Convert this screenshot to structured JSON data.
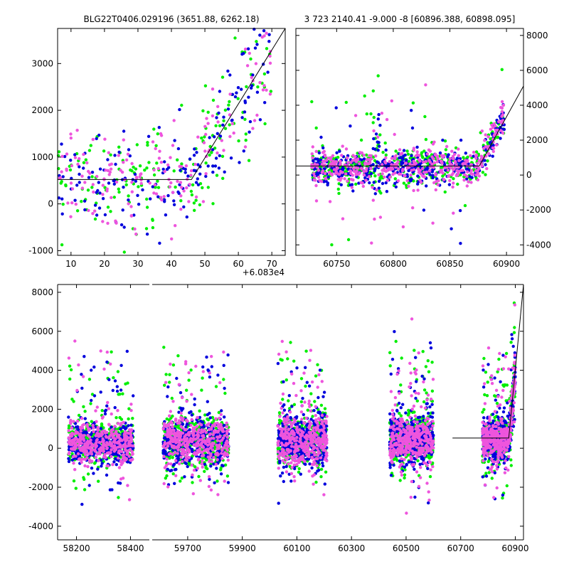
{
  "chart_data": [
    {
      "type": "scatter",
      "title": "BLG22T0406.029196 (3651.88, 6262.18)",
      "xlabel": "",
      "ylabel": "",
      "x_offset_label": "+6.083e4",
      "xlim": [
        6,
        74
      ],
      "ylim": [
        -1100,
        3750
      ],
      "xticks": [
        10,
        20,
        30,
        40,
        50,
        60,
        70
      ],
      "yticks": [
        -1000,
        0,
        1000,
        2000,
        3000
      ],
      "grid": false,
      "series_colors": [
        "#00ee00",
        "#0000dd",
        "#ee55dd"
      ],
      "model_line": [
        [
          6,
          520
        ],
        [
          46,
          520
        ],
        [
          74,
          3750
        ]
      ]
    },
    {
      "type": "scatter",
      "title": "3 723 2140.41 -9.000 -8 [60896.388, 60898.095]",
      "xlabel": "",
      "ylabel": "",
      "xlim": [
        60714,
        60915
      ],
      "ylim": [
        -4600,
        8400
      ],
      "xticks": [
        60750,
        60800,
        60850,
        60900
      ],
      "yticks": [
        -4000,
        -2000,
        0,
        2000,
        4000,
        6000,
        8000
      ],
      "y_axis_side": "right",
      "grid": false,
      "series_colors": [
        "#00ee00",
        "#0000dd",
        "#ee55dd"
      ],
      "model_line": [
        [
          60714,
          520
        ],
        [
          60876,
          520
        ],
        [
          60915,
          5100
        ]
      ]
    },
    {
      "type": "scatter",
      "title": "",
      "xlabel": "",
      "ylabel": "",
      "ylim": [
        -4700,
        8400
      ],
      "yticks": [
        -4000,
        -2000,
        0,
        2000,
        4000,
        6000,
        8000
      ],
      "broken_x_axis": true,
      "segments": [
        {
          "xlim": [
            58130,
            58470
          ],
          "xticks": [
            58200,
            58400
          ]
        },
        {
          "xlim": [
            59570,
            60930
          ],
          "xticks": [
            59700,
            59900,
            60100,
            60300,
            60500,
            60700,
            60900
          ]
        }
      ],
      "series_colors": [
        "#00ee00",
        "#0000dd",
        "#ee55dd"
      ],
      "clusters": [
        {
          "x": [
            58170,
            58410
          ],
          "y_center": 250,
          "spread": 500
        },
        {
          "x": [
            59610,
            59850
          ],
          "y_center": 350,
          "spread": 600
        },
        {
          "x": [
            60030,
            60210
          ],
          "y_center": 400,
          "spread": 650
        },
        {
          "x": [
            60440,
            60600
          ],
          "y_center": 450,
          "spread": 650
        },
        {
          "x": [
            60780,
            60900
          ],
          "y_center": 450,
          "spread": 500
        }
      ],
      "model_line": [
        [
          60670,
          520
        ],
        [
          60876,
          520
        ],
        [
          60930,
          8500
        ]
      ]
    }
  ]
}
